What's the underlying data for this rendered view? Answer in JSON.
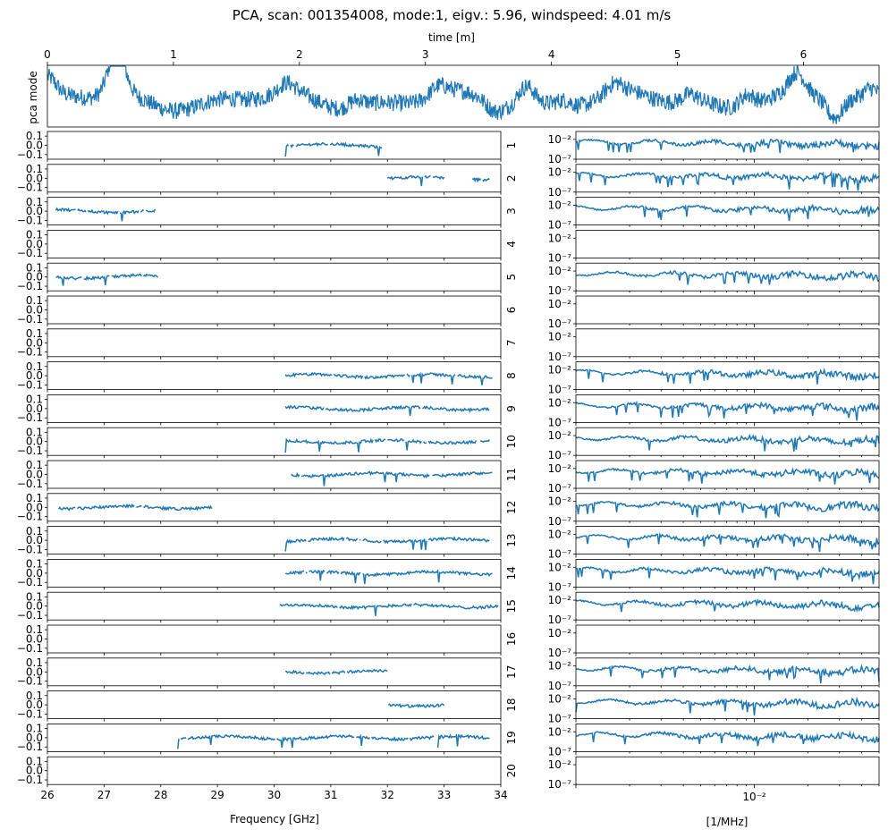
{
  "title": "PCA, scan: 001354008, mode:1, eigv.: 5.96, windspeed: 4.01 m/s",
  "colors": {
    "line": "#1f77b4",
    "axis": "#000000",
    "background": "#ffffff"
  },
  "chart_data": [
    {
      "type": "line",
      "name": "pca-mode-timeseries",
      "xlabel": "time [m]",
      "ylabel": "pca mode",
      "xlim": [
        0,
        6.6
      ],
      "xticks": [
        "0",
        "1",
        "2",
        "3",
        "4",
        "5",
        "6"
      ],
      "ylim": [
        -1,
        1
      ],
      "bumps": [
        {
          "t": 0.0,
          "a": 0.65
        },
        {
          "t": 0.55,
          "a": 0.35
        },
        {
          "t": 0.55,
          "a": 0.1
        },
        {
          "t": 0.55,
          "a": 0.1
        },
        {
          "t": 0.55,
          "a": 0.2
        },
        {
          "t": 0.55,
          "a": 0.6
        },
        {
          "t": 0.55,
          "a": 0.2
        },
        {
          "t": 1.9,
          "a": 0.3
        },
        {
          "t": 2.45,
          "a": 0.25
        },
        {
          "t": 3.1,
          "a": 0.3
        },
        {
          "t": 3.55,
          "a": -0.25
        },
        {
          "t": 3.8,
          "a": 0.6
        },
        {
          "t": 4.1,
          "a": 0.2
        },
        {
          "t": 4.5,
          "a": 0.3
        },
        {
          "t": 5.1,
          "a": 0.25
        },
        {
          "t": 5.55,
          "a": 0.45
        },
        {
          "t": 5.95,
          "a": 0.65
        },
        {
          "t": 6.25,
          "a": -0.6
        },
        {
          "t": 6.55,
          "a": 0.4
        }
      ]
    },
    {
      "type": "line",
      "name": "pca-frequency-panels",
      "xlabel": "Frequency [GHz]",
      "xlim": [
        26,
        34
      ],
      "xticks": [
        "26",
        "27",
        "28",
        "29",
        "30",
        "31",
        "32",
        "33",
        "34"
      ],
      "ylim": [
        -0.15,
        0.15
      ],
      "yticks": [
        "0.1",
        "0.0",
        "−0.1"
      ],
      "panel_labels": [
        "1",
        "2",
        "3",
        "4",
        "5",
        "6",
        "7",
        "8",
        "9",
        "10",
        "11",
        "12",
        "13",
        "14",
        "15",
        "16",
        "17",
        "18",
        "19",
        "20"
      ],
      "segments": [
        [
          [
            30.2,
            31.9
          ]
        ],
        [
          [
            32.0,
            33.0
          ],
          [
            33.5,
            33.8
          ]
        ],
        [
          [
            26.15,
            27.9
          ]
        ],
        [],
        [
          [
            26.15,
            27.95
          ]
        ],
        [],
        [],
        [
          [
            30.2,
            33.85
          ]
        ],
        [
          [
            30.2,
            33.8
          ]
        ],
        [
          [
            30.2,
            33.8
          ]
        ],
        [
          [
            30.3,
            33.85
          ]
        ],
        [
          [
            26.2,
            28.9
          ]
        ],
        [
          [
            30.2,
            33.8
          ]
        ],
        [
          [
            30.2,
            33.85
          ]
        ],
        [
          [
            30.1,
            33.95
          ]
        ],
        [],
        [
          [
            30.2,
            32.0
          ]
        ],
        [
          [
            32.0,
            33.0
          ]
        ],
        [
          [
            28.3,
            33.8
          ]
        ],
        []
      ]
    },
    {
      "type": "line",
      "name": "power-spectra",
      "xlabel": "[1/MHz]",
      "xscale": "log",
      "xlim": [
        0.001,
        0.05
      ],
      "xticks": [
        "10⁻²"
      ],
      "yscale": "log",
      "ylim": [
        -7,
        0
      ],
      "yticks": [
        "10⁻²",
        "10⁻⁷"
      ],
      "active_panels": [
        1,
        2,
        3,
        5,
        8,
        9,
        10,
        11,
        12,
        13,
        14,
        15,
        17,
        18,
        19
      ]
    }
  ]
}
